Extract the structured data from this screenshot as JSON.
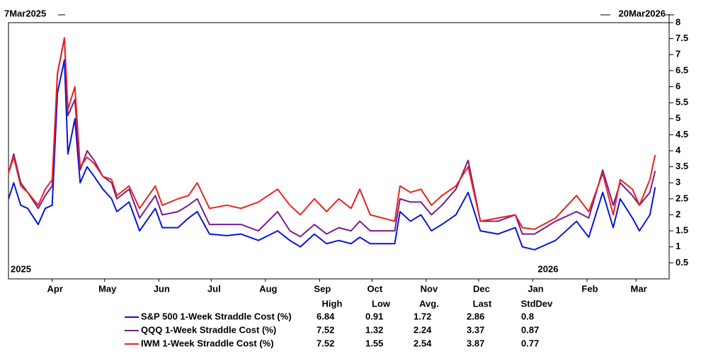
{
  "chart_data": {
    "type": "line",
    "range_labels": [
      "7Mar2025",
      "20Mar2026"
    ],
    "year_labels": [
      "2025",
      "2026"
    ],
    "x": [
      "2025-03-07",
      "2025-03-10",
      "2025-03-14",
      "2025-03-18",
      "2025-03-24",
      "2025-03-28",
      "2025-04-01",
      "2025-04-04",
      "2025-04-08",
      "2025-04-10",
      "2025-04-14",
      "2025-04-17",
      "2025-04-21",
      "2025-04-25",
      "2025-04-30",
      "2025-05-05",
      "2025-05-08",
      "2025-05-15",
      "2025-05-21",
      "2025-05-30",
      "2025-06-03",
      "2025-06-12",
      "2025-06-18",
      "2025-06-23",
      "2025-06-30",
      "2025-07-10",
      "2025-07-18",
      "2025-07-28",
      "2025-08-08",
      "2025-08-15",
      "2025-08-21",
      "2025-08-29",
      "2025-09-05",
      "2025-09-12",
      "2025-09-19",
      "2025-09-24",
      "2025-09-30",
      "2025-10-14",
      "2025-10-17",
      "2025-10-23",
      "2025-10-29",
      "2025-11-04",
      "2025-11-10",
      "2025-11-18",
      "2025-11-25",
      "2025-12-02",
      "2025-12-12",
      "2025-12-22",
      "2025-12-26",
      "2026-01-02",
      "2026-01-14",
      "2026-01-26",
      "2026-02-02",
      "2026-02-10",
      "2026-02-16",
      "2026-02-20",
      "2026-02-27",
      "2026-03-03",
      "2026-03-09",
      "2026-03-12"
    ],
    "xlim": [
      "2025-03-07",
      "2026-03-20"
    ],
    "xticks": [
      {
        "value": "2025-04-01",
        "label": "Apr"
      },
      {
        "value": "2025-05-01",
        "label": "May"
      },
      {
        "value": "2025-06-01",
        "label": "Jun"
      },
      {
        "value": "2025-07-01",
        "label": "Jul"
      },
      {
        "value": "2025-08-01",
        "label": "Aug"
      },
      {
        "value": "2025-09-01",
        "label": "Sep"
      },
      {
        "value": "2025-10-01",
        "label": "Oct"
      },
      {
        "value": "2025-11-01",
        "label": "Nov"
      },
      {
        "value": "2025-12-01",
        "label": "Dec"
      },
      {
        "value": "2026-01-01",
        "label": "Jan"
      },
      {
        "value": "2026-02-01",
        "label": "Feb"
      },
      {
        "value": "2026-03-01",
        "label": "Mar"
      }
    ],
    "ylim": [
      0,
      8
    ],
    "yticks": [
      0.5,
      1,
      1.5,
      2,
      2.5,
      3,
      3.5,
      4,
      4.5,
      5,
      5.5,
      6,
      6.5,
      7,
      7.5,
      8
    ],
    "grid": false,
    "stats_columns": [
      "High",
      "Low",
      "Avg.",
      "Last",
      "StdDev"
    ],
    "series": [
      {
        "name": "S&P 500 1-Week Straddle Cost (%)",
        "color": "#0a14d8",
        "stats": [
          6.84,
          0.91,
          1.72,
          2.86,
          0.8
        ],
        "values": [
          2.5,
          3.0,
          2.3,
          2.2,
          1.7,
          2.2,
          2.3,
          5.8,
          6.84,
          3.9,
          5.0,
          3.0,
          3.5,
          3.2,
          2.8,
          2.5,
          2.1,
          2.4,
          1.5,
          2.2,
          1.6,
          1.6,
          1.9,
          2.1,
          1.4,
          1.35,
          1.4,
          1.2,
          1.5,
          1.2,
          1.0,
          1.4,
          1.1,
          1.2,
          1.1,
          1.3,
          1.1,
          1.1,
          2.1,
          1.8,
          2.0,
          1.5,
          1.7,
          2.0,
          2.7,
          1.5,
          1.4,
          1.6,
          1.0,
          0.91,
          1.2,
          1.8,
          1.3,
          2.7,
          1.6,
          2.5,
          1.9,
          1.5,
          2.0,
          2.86
        ]
      },
      {
        "name": "QQQ 1-Week Straddle Cost (%)",
        "color": "#7b1b8c",
        "stats": [
          7.52,
          1.32,
          2.24,
          3.37,
          0.87
        ],
        "values": [
          3.3,
          3.9,
          3.0,
          2.7,
          2.2,
          2.6,
          2.9,
          6.4,
          7.52,
          5.1,
          5.6,
          3.4,
          4.0,
          3.7,
          3.2,
          3.0,
          2.5,
          2.8,
          1.9,
          2.6,
          2.0,
          2.1,
          2.3,
          2.5,
          1.7,
          1.7,
          1.7,
          1.5,
          2.1,
          1.5,
          1.32,
          1.7,
          1.4,
          1.6,
          1.5,
          1.8,
          1.5,
          1.5,
          2.5,
          2.4,
          2.4,
          2.0,
          2.3,
          2.8,
          3.7,
          1.8,
          1.8,
          2.0,
          1.4,
          1.4,
          1.8,
          2.1,
          1.9,
          3.4,
          2.3,
          3.0,
          2.6,
          2.3,
          2.7,
          3.37
        ]
      },
      {
        "name": "IWM 1-Week Straddle Cost (%)",
        "color": "#e8231e",
        "stats": [
          7.52,
          1.55,
          2.54,
          3.87,
          0.77
        ],
        "values": [
          3.3,
          3.8,
          2.9,
          2.7,
          2.3,
          2.8,
          3.1,
          6.4,
          7.52,
          5.3,
          6.0,
          3.5,
          3.8,
          3.6,
          3.2,
          3.1,
          2.6,
          2.9,
          2.2,
          2.9,
          2.3,
          2.5,
          2.6,
          3.0,
          2.2,
          2.3,
          2.2,
          2.4,
          2.8,
          2.3,
          2.0,
          2.5,
          2.1,
          2.5,
          2.2,
          2.8,
          2.0,
          1.8,
          2.9,
          2.7,
          2.8,
          2.3,
          2.6,
          2.9,
          3.5,
          1.8,
          1.9,
          2.0,
          1.6,
          1.55,
          1.9,
          2.6,
          2.1,
          3.3,
          2.0,
          3.1,
          2.8,
          2.3,
          3.1,
          3.87
        ]
      }
    ]
  }
}
